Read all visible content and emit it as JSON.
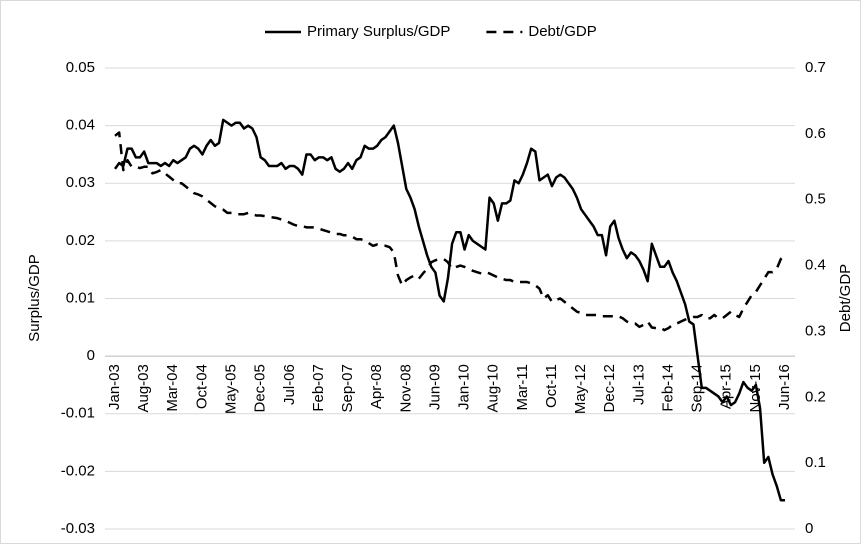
{
  "chart_data": {
    "type": "line",
    "categories": [
      "Jan-03",
      null,
      null,
      null,
      null,
      null,
      null,
      "Aug-03",
      null,
      null,
      null,
      null,
      null,
      null,
      "Mar-04",
      null,
      null,
      null,
      null,
      null,
      null,
      "Oct-04",
      null,
      null,
      null,
      null,
      null,
      null,
      "May-05",
      null,
      null,
      null,
      null,
      null,
      null,
      "Dec-05",
      null,
      null,
      null,
      null,
      null,
      null,
      "Jul-06",
      null,
      null,
      null,
      null,
      null,
      null,
      "Feb-07",
      null,
      null,
      null,
      null,
      null,
      null,
      "Sep-07",
      null,
      null,
      null,
      null,
      null,
      null,
      "Apr-08",
      null,
      null,
      null,
      null,
      null,
      null,
      "Nov-08",
      null,
      null,
      null,
      null,
      null,
      null,
      "Jun-09",
      null,
      null,
      null,
      null,
      null,
      null,
      "Jan-10",
      null,
      null,
      null,
      null,
      null,
      null,
      "Aug-10",
      null,
      null,
      null,
      null,
      null,
      null,
      "Mar-11",
      null,
      null,
      null,
      null,
      null,
      null,
      "Oct-11",
      null,
      null,
      null,
      null,
      null,
      null,
      "May-12",
      null,
      null,
      null,
      null,
      null,
      null,
      "Dec-12",
      null,
      null,
      null,
      null,
      null,
      null,
      "Jul-13",
      null,
      null,
      null,
      null,
      null,
      null,
      "Feb-14",
      null,
      null,
      null,
      null,
      null,
      null,
      "Sep-14",
      null,
      null,
      null,
      null,
      null,
      null,
      "Apr-15",
      null,
      null,
      null,
      null,
      null,
      null,
      "Nov-15",
      null,
      null,
      null,
      null,
      null,
      null,
      "Jun-16"
    ],
    "series": [
      {
        "name": "Primary Surplus/GDP",
        "color": "#000000",
        "line_style": "solid",
        "axis": "y",
        "values": [
          0.0325,
          0.0335,
          0.033,
          0.036,
          0.036,
          0.0345,
          0.0345,
          0.0355,
          0.0335,
          0.0335,
          0.0335,
          0.033,
          0.0335,
          0.033,
          0.034,
          0.0335,
          0.034,
          0.0345,
          0.036,
          0.0365,
          0.036,
          0.035,
          0.0365,
          0.0375,
          0.0365,
          0.037,
          0.041,
          0.0405,
          0.04,
          0.0405,
          0.0405,
          0.0395,
          0.04,
          0.0395,
          0.038,
          0.0345,
          0.034,
          0.033,
          0.033,
          0.033,
          0.0335,
          0.0325,
          0.033,
          0.033,
          0.0325,
          0.0315,
          0.035,
          0.035,
          0.034,
          0.0345,
          0.0345,
          0.034,
          0.0345,
          0.0325,
          0.032,
          0.0325,
          0.0335,
          0.0325,
          0.034,
          0.0345,
          0.0365,
          0.036,
          0.036,
          0.0365,
          0.0375,
          0.038,
          0.039,
          0.04,
          0.037,
          0.033,
          0.029,
          0.0275,
          0.0255,
          0.0225,
          0.02,
          0.0175,
          0.0155,
          0.0145,
          0.0105,
          0.0095,
          0.0135,
          0.0195,
          0.0215,
          0.0215,
          0.0185,
          0.021,
          0.02,
          0.0195,
          0.019,
          0.0185,
          0.0275,
          0.0265,
          0.0235,
          0.0265,
          0.0265,
          0.027,
          0.0305,
          0.03,
          0.0315,
          0.0335,
          0.036,
          0.0355,
          0.0305,
          0.031,
          0.0315,
          0.0295,
          0.031,
          0.0315,
          0.031,
          0.03,
          0.029,
          0.0275,
          0.0255,
          0.0245,
          0.0235,
          0.0225,
          0.021,
          0.021,
          0.0175,
          0.0225,
          0.0235,
          0.0205,
          0.0185,
          0.017,
          0.018,
          0.0175,
          0.0165,
          0.015,
          0.013,
          0.0195,
          0.0175,
          0.0155,
          0.0155,
          0.0165,
          0.0145,
          0.013,
          0.011,
          0.009,
          0.006,
          0.0055,
          0,
          -0.0055,
          -0.0055,
          -0.006,
          -0.0065,
          -0.007,
          -0.008,
          -0.007,
          -0.0085,
          -0.008,
          -0.0065,
          -0.0045,
          -0.0055,
          -0.006,
          -0.005,
          -0.009,
          -0.0185,
          -0.0175,
          -0.0205,
          -0.0225,
          -0.025,
          -0.025
        ]
      },
      {
        "name": "Debt/GDP",
        "color": "#000000",
        "line_style": "dashed",
        "axis": "y2",
        "values": [
          0.597,
          0.602,
          0.545,
          0.56,
          0.55,
          0.55,
          0.548,
          0.55,
          0.55,
          0.54,
          0.542,
          0.545,
          0.54,
          0.535,
          0.53,
          0.525,
          0.525,
          0.52,
          0.515,
          0.51,
          0.508,
          0.505,
          0.5,
          0.495,
          0.49,
          0.488,
          0.485,
          0.48,
          0.48,
          0.478,
          0.478,
          0.478,
          0.48,
          0.478,
          0.476,
          0.476,
          0.475,
          0.474,
          0.473,
          0.472,
          0.47,
          0.468,
          0.465,
          0.462,
          0.46,
          0.46,
          0.458,
          0.458,
          0.458,
          0.456,
          0.454,
          0.452,
          0.45,
          0.448,
          0.448,
          0.446,
          0.446,
          0.444,
          0.44,
          0.44,
          0.438,
          0.434,
          0.43,
          0.432,
          0.43,
          0.43,
          0.428,
          0.42,
          0.385,
          0.37,
          0.378,
          0.382,
          0.385,
          0.38,
          0.388,
          0.395,
          0.405,
          0.408,
          0.41,
          0.41,
          0.405,
          0.395,
          0.398,
          0.4,
          0.398,
          0.395,
          0.392,
          0.39,
          0.388,
          0.39,
          0.388,
          0.385,
          0.382,
          0.38,
          0.378,
          0.378,
          0.375,
          0.375,
          0.375,
          0.375,
          0.373,
          0.37,
          0.365,
          0.35,
          0.355,
          0.345,
          0.348,
          0.35,
          0.345,
          0.34,
          0.335,
          0.33,
          0.328,
          0.325,
          0.325,
          0.325,
          0.325,
          0.323,
          0.323,
          0.323,
          0.323,
          0.323,
          0.32,
          0.315,
          0.312,
          0.312,
          0.307,
          0.31,
          0.315,
          0.306,
          0.305,
          0.306,
          0.302,
          0.305,
          0.31,
          0.312,
          0.315,
          0.318,
          0.32,
          0.322,
          0.322,
          0.325,
          0.32,
          0.32,
          0.325,
          0.32,
          0.32,
          0.325,
          0.33,
          0.325,
          0.322,
          0.335,
          0.345,
          0.355,
          0.36,
          0.37,
          0.38,
          0.39,
          0.39,
          0.395,
          0.41,
          0.415
        ]
      }
    ],
    "y_label": "Surplus/GDP",
    "y2_label": "Debt/GDP",
    "ylim": [
      -0.03,
      0.05
    ],
    "yticks": [
      -0.03,
      -0.02,
      -0.01,
      0,
      0.01,
      0.02,
      0.03,
      0.04,
      0.05
    ],
    "y2lim": [
      0,
      0.7
    ],
    "y2ticks": [
      0,
      0.1,
      0.2,
      0.3,
      0.4,
      0.5,
      0.6,
      0.7
    ],
    "grid": true,
    "legend": "top"
  }
}
